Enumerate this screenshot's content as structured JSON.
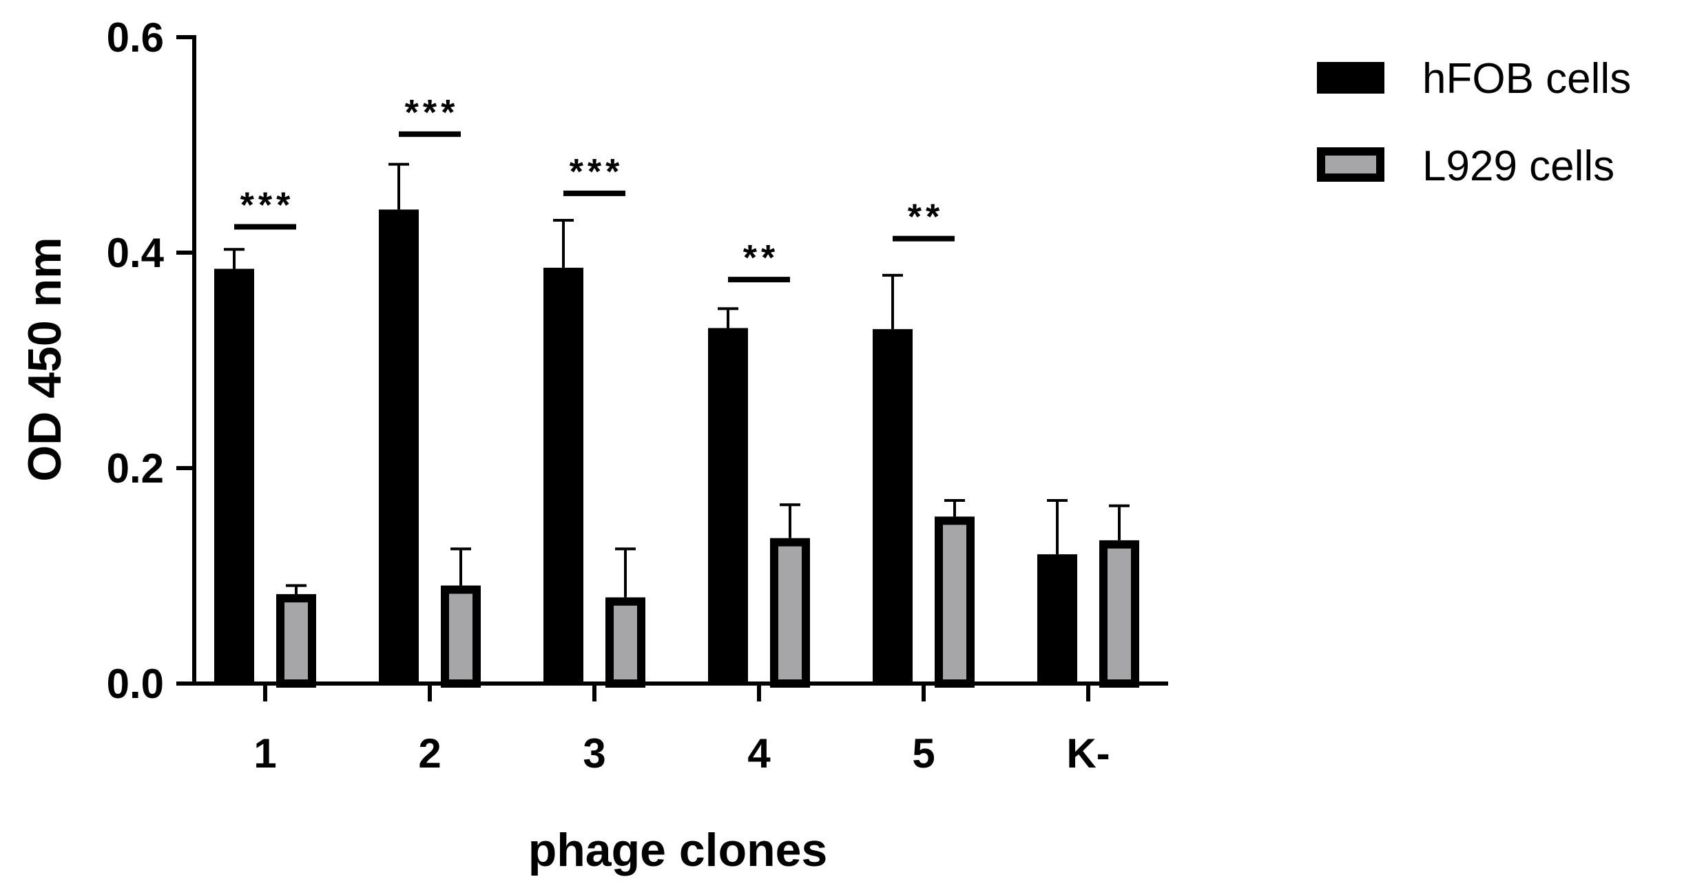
{
  "chart_data": {
    "type": "bar",
    "xlabel": "phage clones",
    "ylabel": "OD 450 nm",
    "ylim": [
      0,
      0.6
    ],
    "yticks": [
      "0.0",
      "0.2",
      "0.4",
      "0.6"
    ],
    "categories": [
      "1",
      "2",
      "3",
      "4",
      "5",
      "K-"
    ],
    "series": [
      {
        "name": "hFOB cells",
        "color": "#000000",
        "fill": "#000000",
        "values": [
          0.385,
          0.44,
          0.386,
          0.33,
          0.329,
          0.12
        ],
        "errors": [
          0.018,
          0.042,
          0.044,
          0.018,
          0.05,
          0.05
        ]
      },
      {
        "name": "L929 cells",
        "color": "#000000",
        "fill": "#a6a6a8",
        "values": [
          0.083,
          0.091,
          0.08,
          0.135,
          0.155,
          0.133
        ],
        "errors": [
          0.008,
          0.034,
          0.045,
          0.031,
          0.015,
          0.032
        ]
      }
    ],
    "significance": [
      {
        "category": "1",
        "label": "***",
        "y": 0.424
      },
      {
        "category": "2",
        "label": "***",
        "y": 0.51
      },
      {
        "category": "3",
        "label": "***",
        "y": 0.455
      },
      {
        "category": "4",
        "label": "**",
        "y": 0.375
      },
      {
        "category": "5",
        "label": "**",
        "y": 0.413
      }
    ],
    "legend_position": "top-right",
    "grid": false
  }
}
